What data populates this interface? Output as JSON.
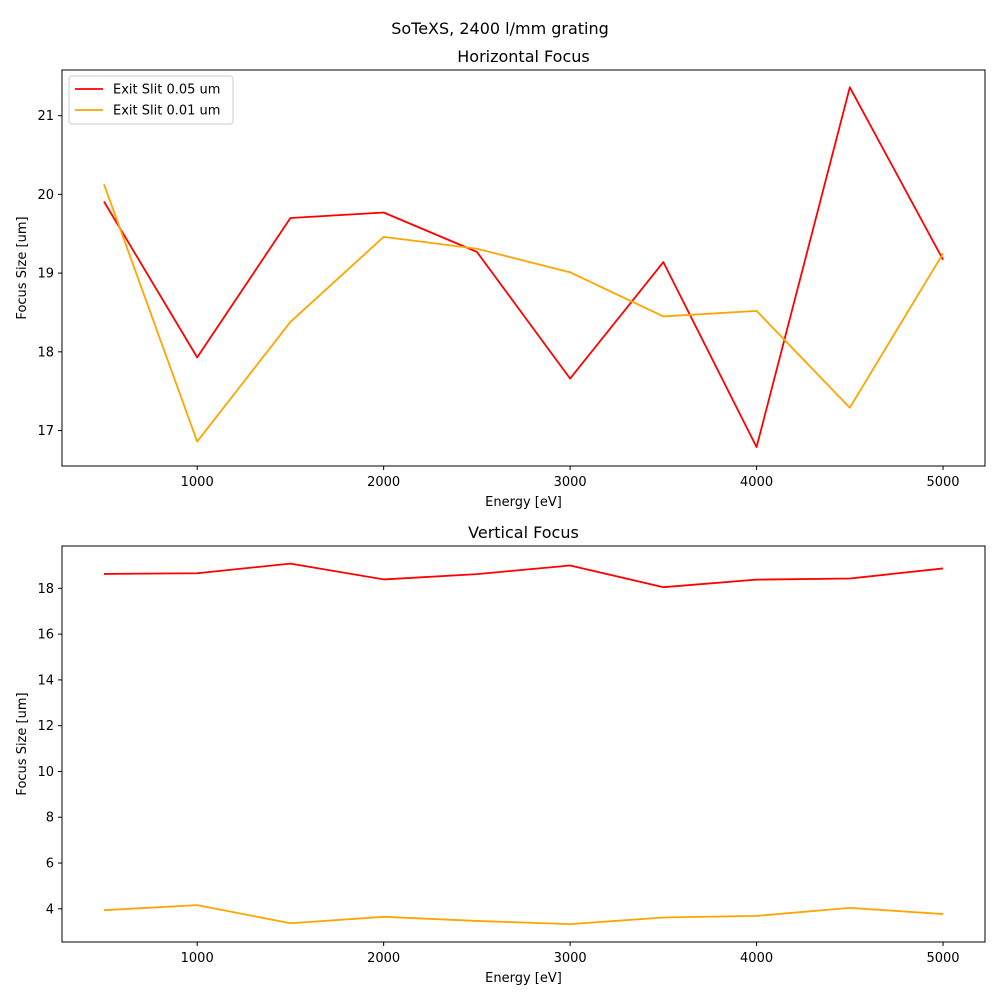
{
  "title": "SoTeXS, 2400 l/mm grating",
  "legend": {
    "placement": "upper-left of first panel"
  },
  "colors": {
    "exit_slit_005": "#ff0000",
    "exit_slit_001": "#ffa500"
  },
  "chart_data": [
    {
      "type": "line",
      "title": "Horizontal Focus",
      "xlabel": "Energy [eV]",
      "ylabel": "Focus Size [um]",
      "xlim": [
        275,
        5225
      ],
      "ylim": [
        16.55,
        21.58
      ],
      "xticks": [
        1000,
        2000,
        3000,
        4000,
        5000
      ],
      "yticks": [
        17,
        18,
        19,
        20,
        21
      ],
      "grid": false,
      "x": [
        500,
        1000,
        1500,
        2000,
        2500,
        3000,
        3500,
        4000,
        4500,
        5000
      ],
      "series": [
        {
          "name": "Exit Slit 0.05 um",
          "color": "#ff0000",
          "values": [
            19.91,
            17.93,
            19.7,
            19.77,
            19.27,
            17.66,
            19.14,
            16.79,
            21.36,
            19.17
          ]
        },
        {
          "name": "Exit Slit 0.01 um",
          "color": "#ffa500",
          "values": [
            20.13,
            16.86,
            18.38,
            19.46,
            19.31,
            19.01,
            18.45,
            18.52,
            17.29,
            19.25
          ]
        }
      ]
    },
    {
      "type": "line",
      "title": "Vertical Focus",
      "xlabel": "Energy [eV]",
      "ylabel": "Focus Size [um]",
      "xlim": [
        275,
        5225
      ],
      "ylim": [
        2.55,
        19.85
      ],
      "xticks": [
        1000,
        2000,
        3000,
        4000,
        5000
      ],
      "yticks": [
        4,
        6,
        8,
        10,
        12,
        14,
        16,
        18
      ],
      "grid": false,
      "x": [
        500,
        1000,
        1500,
        2000,
        2500,
        3000,
        3500,
        4000,
        4500,
        5000
      ],
      "series": [
        {
          "name": "Exit Slit 0.05 um",
          "color": "#ff0000",
          "values": [
            18.63,
            18.66,
            19.08,
            18.39,
            18.62,
            19.0,
            18.05,
            18.38,
            18.43,
            18.87
          ]
        },
        {
          "name": "Exit Slit 0.01 um",
          "color": "#ffa500",
          "values": [
            3.94,
            4.16,
            3.37,
            3.65,
            3.47,
            3.33,
            3.62,
            3.69,
            4.04,
            3.77
          ]
        }
      ]
    }
  ]
}
